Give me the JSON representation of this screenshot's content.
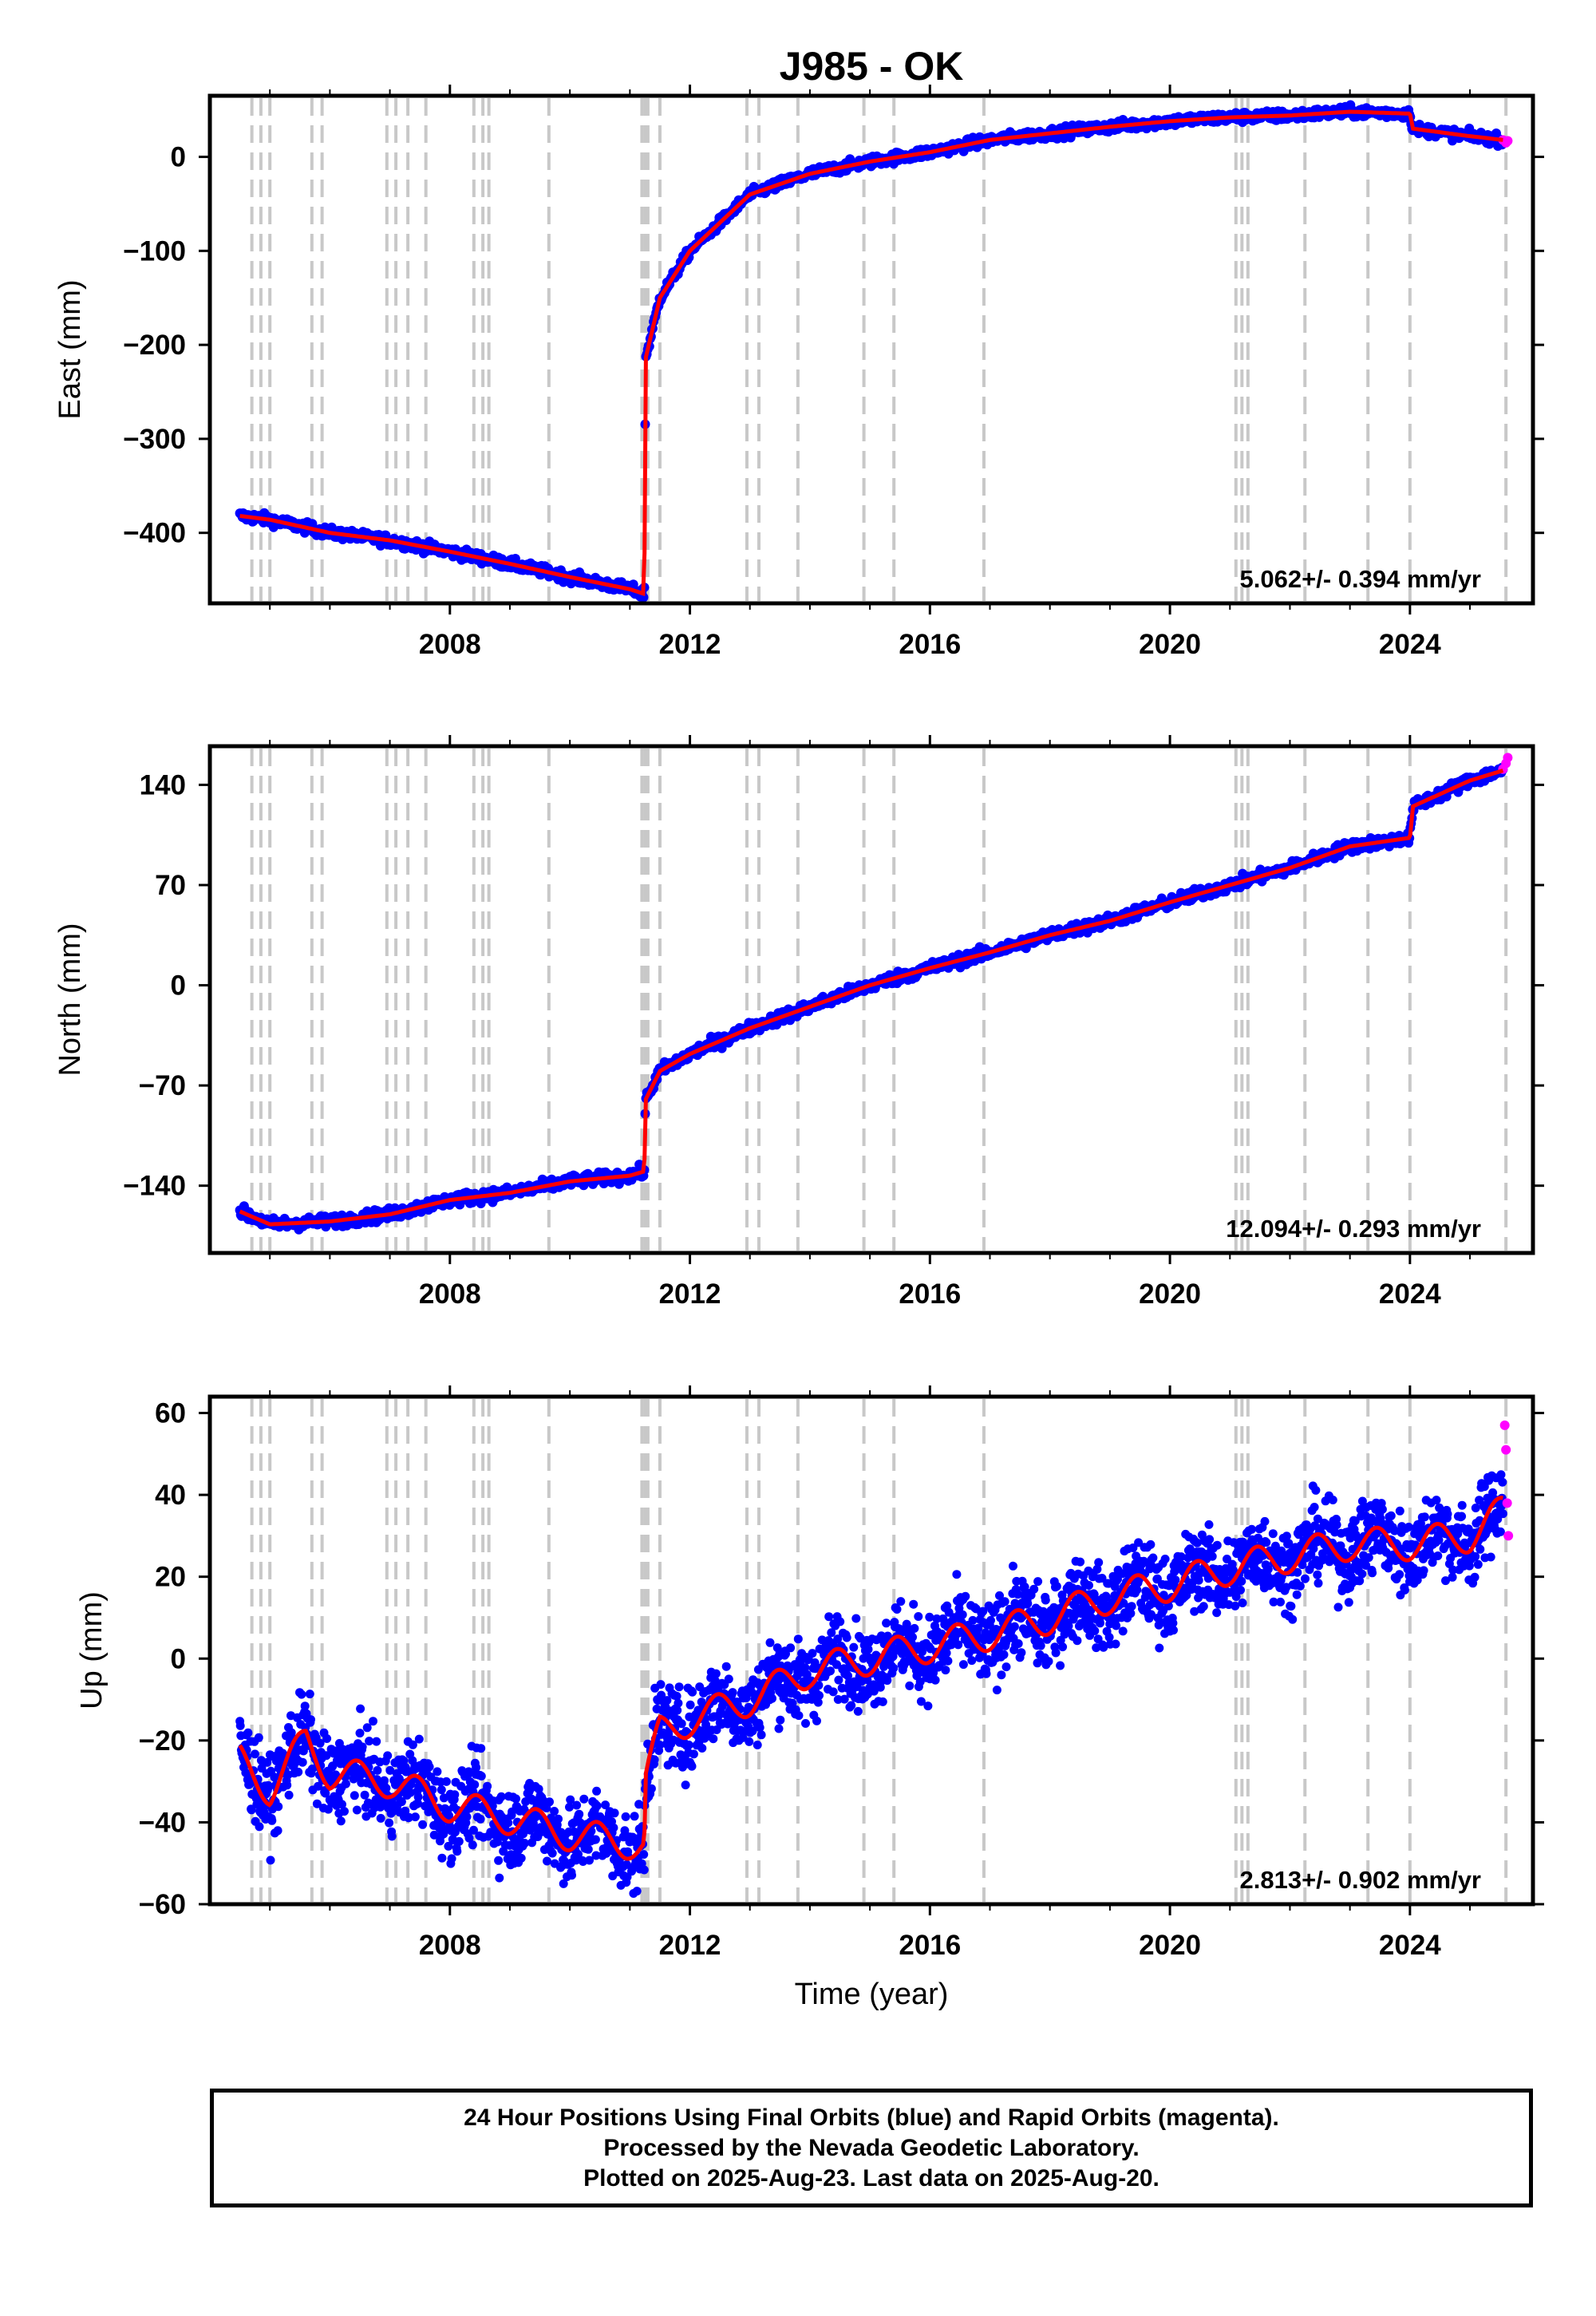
{
  "title": "J985 - OK",
  "colors": {
    "final_orbits": "#0000ff",
    "rapid_orbits": "#ff00ff",
    "model": "#ff0000",
    "events": "#c8c8c8"
  },
  "chart_data": [
    {
      "type": "scatter",
      "ylabel": "East (mm)",
      "xlabel": "",
      "rate": "5.062+/- 0.394 mm/yr",
      "xlim": [
        2004.0,
        2026.05
      ],
      "ylim": [
        -475,
        65
      ],
      "xticks": [
        2008,
        2012,
        2016,
        2020,
        2024
      ],
      "xtick_labels": [
        "2008",
        "2012",
        "2016",
        "2020",
        "2024"
      ],
      "yticks": [
        0,
        -100,
        -200,
        -300,
        -400
      ],
      "ytick_labels": [
        "0",
        "−100",
        "−200",
        "−300",
        "−400"
      ],
      "series": [
        {
          "name": "Final Orbits",
          "color": "#0000ff",
          "x": [
            2004.5,
            2005.0,
            2006.0,
            2007.0,
            2008.0,
            2009.0,
            2010.0,
            2011.0,
            2011.24,
            2011.26,
            2011.5,
            2012.0,
            2013.0,
            2014.0,
            2015.0,
            2016.0,
            2017.0,
            2018.0,
            2019.0,
            2020.0,
            2021.0,
            2022.0,
            2023.0,
            2024.0,
            2024.05,
            2025.0,
            2025.55
          ],
          "y": [
            -382,
            -386,
            -400,
            -408,
            -420,
            -433,
            -447,
            -460,
            -465,
            -215,
            -150,
            -100,
            -40,
            -18,
            -5,
            5,
            18,
            25,
            32,
            38,
            42,
            44,
            48,
            46,
            30,
            22,
            18
          ]
        },
        {
          "name": "Rapid Orbits",
          "color": "#ff00ff",
          "x": [
            2025.55,
            2025.6,
            2025.63
          ],
          "y": [
            18,
            15,
            17
          ]
        }
      ]
    },
    {
      "type": "scatter",
      "ylabel": "North (mm)",
      "xlabel": "",
      "rate": "12.094+/- 0.293 mm/yr",
      "xlim": [
        2004.0,
        2026.05
      ],
      "ylim": [
        -187,
        167
      ],
      "xticks": [
        2008,
        2012,
        2016,
        2020,
        2024
      ],
      "xtick_labels": [
        "2008",
        "2012",
        "2016",
        "2020",
        "2024"
      ],
      "yticks": [
        140,
        70,
        0,
        -70,
        -140
      ],
      "ytick_labels": [
        "140",
        "70",
        "0",
        "−70",
        "−140"
      ],
      "series": [
        {
          "name": "Final Orbits",
          "color": "#0000ff",
          "x": [
            2004.5,
            2005.0,
            2006.0,
            2007.0,
            2008.0,
            2009.0,
            2010.0,
            2011.0,
            2011.24,
            2011.26,
            2011.5,
            2012.0,
            2013.0,
            2014.0,
            2015.0,
            2016.0,
            2017.0,
            2018.0,
            2019.0,
            2020.0,
            2021.0,
            2022.0,
            2023.0,
            2024.0,
            2024.05,
            2025.0,
            2025.55
          ],
          "y": [
            -158,
            -167,
            -165,
            -160,
            -150,
            -145,
            -137,
            -133,
            -130,
            -80,
            -60,
            -48,
            -30,
            -15,
            0,
            12,
            23,
            35,
            45,
            58,
            70,
            82,
            97,
            103,
            125,
            143,
            150
          ]
        },
        {
          "name": "Rapid Orbits",
          "color": "#ff00ff",
          "x": [
            2025.55,
            2025.6,
            2025.63
          ],
          "y": [
            151,
            155,
            159
          ]
        }
      ]
    },
    {
      "type": "scatter",
      "ylabel": "Up (mm)",
      "xlabel": "Time (year)",
      "rate": "2.813+/- 0.902 mm/yr",
      "xlim": [
        2004.0,
        2026.05
      ],
      "ylim": [
        -60,
        64
      ],
      "xticks": [
        2008,
        2012,
        2016,
        2020,
        2024
      ],
      "xtick_labels": [
        "2008",
        "2012",
        "2016",
        "2020",
        "2024"
      ],
      "yticks": [
        60,
        40,
        20,
        0,
        -20,
        -40,
        -60
      ],
      "ytick_labels": [
        "60",
        "40",
        "20",
        "0",
        "−20",
        "−40",
        "−60"
      ],
      "series": [
        {
          "name": "Final Orbits",
          "color": "#0000ff",
          "x": [
            2004.5,
            2005.0,
            2005.6,
            2006.0,
            2007.0,
            2008.0,
            2009.0,
            2010.0,
            2011.0,
            2011.24,
            2011.26,
            2011.5,
            2012.0,
            2013.0,
            2014.0,
            2015.0,
            2016.0,
            2017.0,
            2018.0,
            2019.0,
            2020.0,
            2021.0,
            2022.0,
            2023.0,
            2024.0,
            2025.0,
            2025.55
          ],
          "y": [
            -25,
            -32,
            -20,
            -28,
            -30,
            -36,
            -39,
            -43,
            -45,
            -46,
            -30,
            -18,
            -15,
            -10,
            -3,
            0,
            3,
            6,
            10,
            15,
            18,
            22,
            25,
            28,
            28,
            30,
            36
          ]
        },
        {
          "name": "Rapid Orbits",
          "color": "#ff00ff",
          "x": [
            2025.58,
            2025.6,
            2025.62,
            2025.64
          ],
          "y": [
            57,
            51,
            38,
            30
          ]
        }
      ]
    }
  ],
  "event_lines": [
    2004.7,
    2004.85,
    2005.0,
    2005.7,
    2005.87,
    2006.95,
    2007.1,
    2007.3,
    2007.6,
    2008.4,
    2008.55,
    2008.65,
    2009.65,
    2011.2,
    2011.25,
    2011.3,
    2011.5,
    2012.95,
    2013.15,
    2013.8,
    2014.9,
    2015.4,
    2016.9,
    2021.1,
    2021.2,
    2021.3,
    2022.25,
    2023.3,
    2024.0,
    2025.6
  ],
  "footer": {
    "line1": "24 Hour Positions Using Final Orbits (blue) and Rapid Orbits (magenta).",
    "line2": "Processed by the Nevada Geodetic Laboratory.",
    "line3": "Plotted on 2025-Aug-23. Last data on 2025-Aug-20."
  }
}
